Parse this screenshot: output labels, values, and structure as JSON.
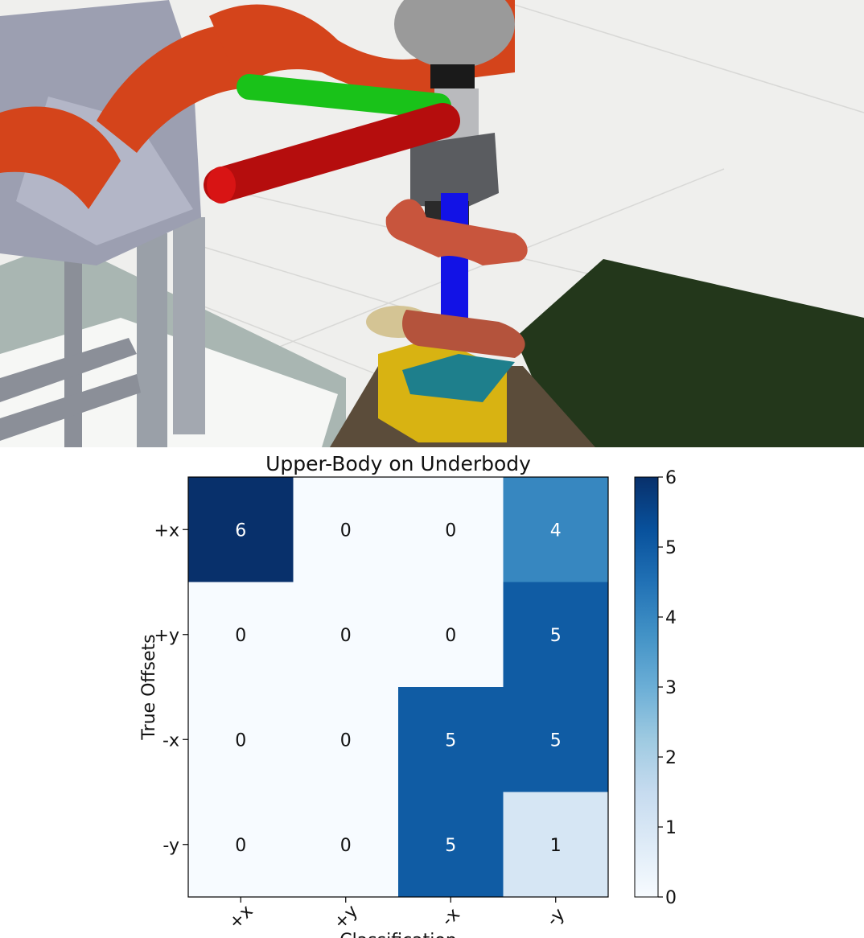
{
  "chart_data": {
    "type": "heatmap",
    "title": "Upper-Body on Underbody",
    "xlabel": "Classification",
    "ylabel": "True Offsets",
    "rows": [
      "+x",
      "+y",
      "-x",
      "-y"
    ],
    "cols": [
      "+x",
      "+y",
      "-x",
      "-y"
    ],
    "values": [
      [
        6,
        0,
        0,
        4
      ],
      [
        0,
        0,
        0,
        5
      ],
      [
        0,
        0,
        5,
        5
      ],
      [
        0,
        0,
        5,
        1
      ]
    ],
    "colorbar": {
      "min": 0,
      "max": 6,
      "ticks": [
        0,
        1,
        2,
        3,
        4,
        5,
        6
      ]
    },
    "colormap": "Blues",
    "colors": {
      "low": "#f7fbff",
      "high": "#08306b"
    }
  }
}
